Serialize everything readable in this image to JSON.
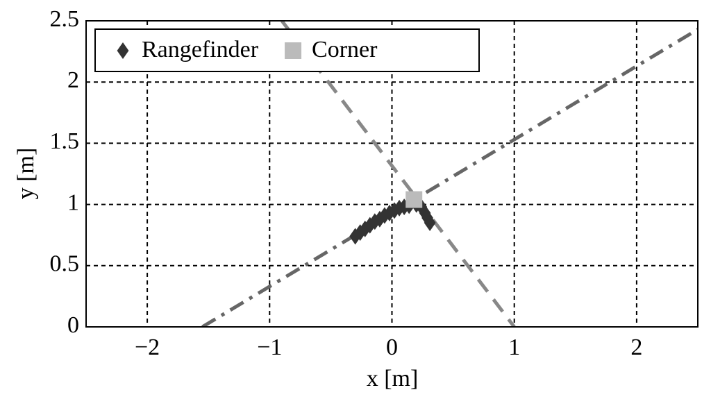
{
  "chart_data": {
    "type": "scatter",
    "x_label": "x [m]",
    "y_label": "y [m]",
    "xlim": [
      -2.5,
      2.5
    ],
    "ylim": [
      0,
      2.5
    ],
    "xticks": [
      {
        "value": -2,
        "label": "−2"
      },
      {
        "value": -1,
        "label": "−1"
      },
      0,
      1,
      2
    ],
    "yticks": [
      0,
      0.5,
      1,
      1.5,
      2,
      2.5
    ],
    "grid": true,
    "legend": "upper left",
    "series": [
      {
        "name": "Rangefinder",
        "color": "#333333",
        "marker": "diamond",
        "x": [
          -0.3,
          -0.26,
          -0.22,
          -0.18,
          -0.14,
          -0.1,
          -0.06,
          -0.02,
          0.02,
          0.06,
          0.1,
          0.14,
          0.2,
          0.24,
          0.27,
          0.29,
          0.31
        ],
        "values": [
          0.74,
          0.77,
          0.8,
          0.83,
          0.86,
          0.88,
          0.91,
          0.93,
          0.95,
          0.97,
          0.98,
          0.99,
          1.0,
          0.98,
          0.93,
          0.89,
          0.85
        ]
      },
      {
        "name": "Corner",
        "color": "#bbbbbb",
        "marker": "square",
        "x": [
          0.18
        ],
        "values": [
          1.04
        ]
      },
      {
        "color": "#666666",
        "line": "dashdot",
        "x": [
          -1.55,
          2.5
        ],
        "values": [
          0,
          2.43
        ]
      },
      {
        "color": "#888888",
        "line": "dashed",
        "x": [
          -0.9,
          1.0
        ],
        "values": [
          2.5,
          0
        ]
      }
    ]
  }
}
